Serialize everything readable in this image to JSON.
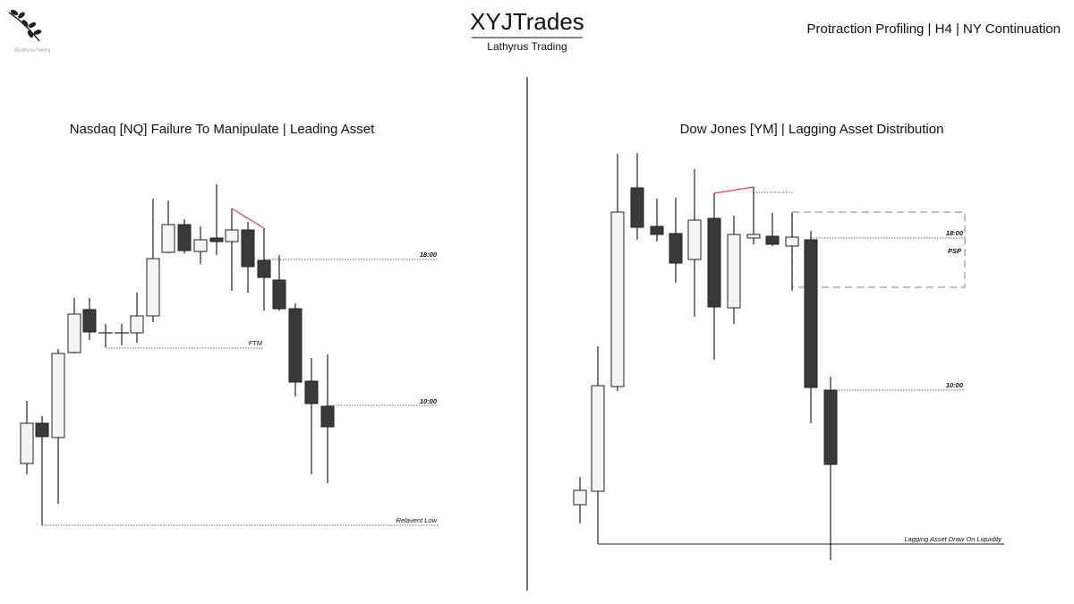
{
  "header": {
    "title": "XYJTrades",
    "subtitle": "Lathyrus Trading",
    "tagline": "Protraction Profiling | H4 | NY Continuation",
    "watermark": "@LathyrusTrading"
  },
  "panels": [
    {
      "title": "Nasdaq [NQ] Failure To Manipulate | Leading Asset",
      "labels": [
        "18:00",
        "FTM",
        "10:00",
        "Relavent Low"
      ]
    },
    {
      "title": "Dow Jones [YM] | Lagging Asset Distribution",
      "labels": [
        "18:00",
        "PSP",
        "10:00",
        "Lagging Asset Draw On Liquidity"
      ]
    }
  ]
}
